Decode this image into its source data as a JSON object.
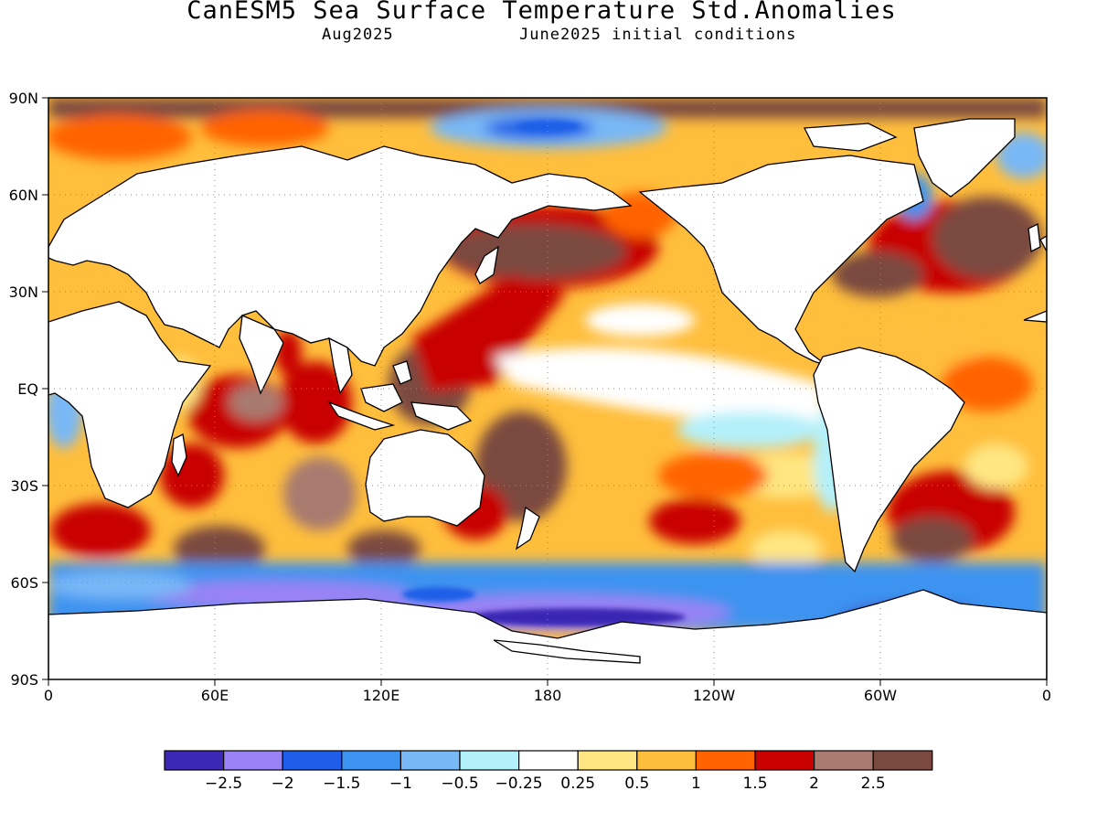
{
  "title": "CanESM5 Sea Surface Temperature Std.Anomalies",
  "valid_month": "Aug2025",
  "init_label": "June2025 initial conditions",
  "map": {
    "lon_ticks": [
      "0",
      "60E",
      "120E",
      "180",
      "120W",
      "60W",
      "0"
    ],
    "lat_ticks": [
      "90N",
      "60N",
      "30N",
      "EQ",
      "30S",
      "60S",
      "90S"
    ],
    "land_color": "#ffffff",
    "coastline_color": "#000000"
  },
  "colorbar": {
    "colors": [
      "#3b28b4",
      "#9a82f4",
      "#1f5ee8",
      "#3c93f0",
      "#78b8f6",
      "#b4f0fa",
      "#ffffff",
      "#ffe682",
      "#ffbe3c",
      "#ff6400",
      "#c80000",
      "#a87a70",
      "#7a4a40"
    ],
    "labels": [
      "−2.5",
      "−2",
      "−1.5",
      "−1",
      "−0.5",
      "−0.25",
      "0.25",
      "0.5",
      "1",
      "1.5",
      "2",
      "2.5"
    ]
  }
}
